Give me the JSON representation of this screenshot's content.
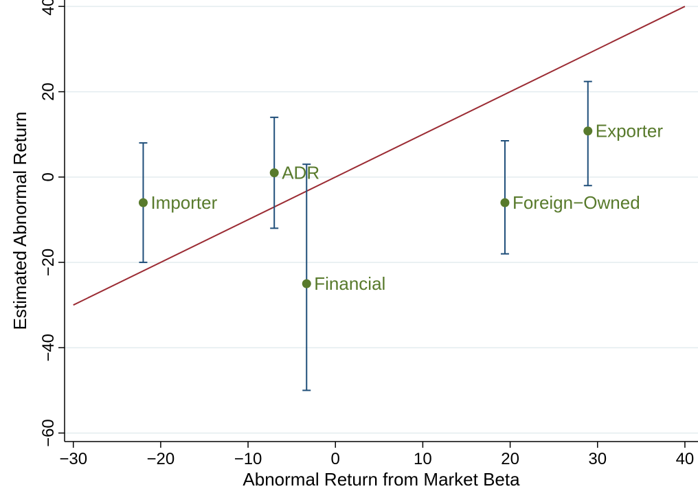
{
  "chart_data": {
    "type": "scatter",
    "title": "",
    "xlabel": "Abnormal Return from Market Beta",
    "ylabel": "Estimated Abnormal Return",
    "xlim": [
      -31,
      41.5
    ],
    "ylim": [
      -62,
      41.5
    ],
    "x_ticks": [
      -30,
      -20,
      -10,
      0,
      10,
      20,
      30,
      40
    ],
    "y_ticks": [
      -60,
      -40,
      -20,
      0,
      20,
      40
    ],
    "x_tick_labels": [
      "−30",
      "−20",
      "−10",
      "0",
      "10",
      "20",
      "30",
      "40"
    ],
    "y_tick_labels": [
      "−60",
      "−40",
      "−20",
      "0",
      "20",
      "40"
    ],
    "grid": true,
    "points": [
      {
        "label": "Importer",
        "x": -22,
        "y": -6,
        "ci_low": -20,
        "ci_high": 8
      },
      {
        "label": "ADR",
        "x": -7,
        "y": 1,
        "ci_low": -12,
        "ci_high": 14
      },
      {
        "label": "Financial",
        "x": -3.3,
        "y": -25,
        "ci_low": -50,
        "ci_high": 3
      },
      {
        "label": "Foreign−Owned",
        "x": 19.4,
        "y": -6,
        "ci_low": -18,
        "ci_high": 8.5
      },
      {
        "label": "Exporter",
        "x": 28.9,
        "y": 10.8,
        "ci_low": -2,
        "ci_high": 22.4
      }
    ],
    "reference_line": {
      "x": [
        -30,
        40
      ],
      "y": [
        -30,
        40
      ]
    },
    "colors": {
      "points": "#587a2c",
      "labels": "#587a2c",
      "error_bars": "#1f4e79",
      "reference_line": "#9b2b33",
      "grid": "#e3ecef",
      "axis": "#000000"
    }
  }
}
